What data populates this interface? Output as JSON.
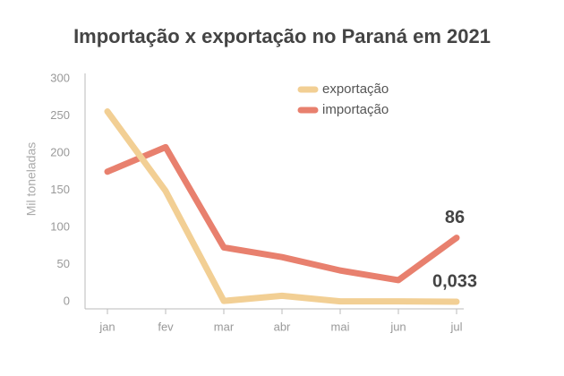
{
  "chart_data": {
    "type": "line",
    "title": "Importação x exportação no Paraná em 2021",
    "y_label": "Mil toneladas",
    "categories": [
      "jan",
      "fev",
      "mar",
      "abr",
      "mai",
      "jun",
      "jul"
    ],
    "series": [
      {
        "name": "exportação",
        "color": "#f2cf94",
        "values": [
          256,
          149,
          1,
          8,
          0.5,
          0.5,
          0.033
        ],
        "value_labels": [
          null,
          null,
          null,
          null,
          null,
          null,
          "0,033"
        ]
      },
      {
        "name": "importação",
        "color": "#e8806e",
        "values": [
          175,
          208,
          73,
          60,
          42,
          29,
          86
        ],
        "value_labels": [
          null,
          null,
          null,
          null,
          null,
          null,
          "86"
        ]
      }
    ],
    "ylim": [
      0,
      300
    ],
    "yticks": [
      0,
      50,
      100,
      150,
      200,
      250,
      300
    ],
    "grid": false
  }
}
